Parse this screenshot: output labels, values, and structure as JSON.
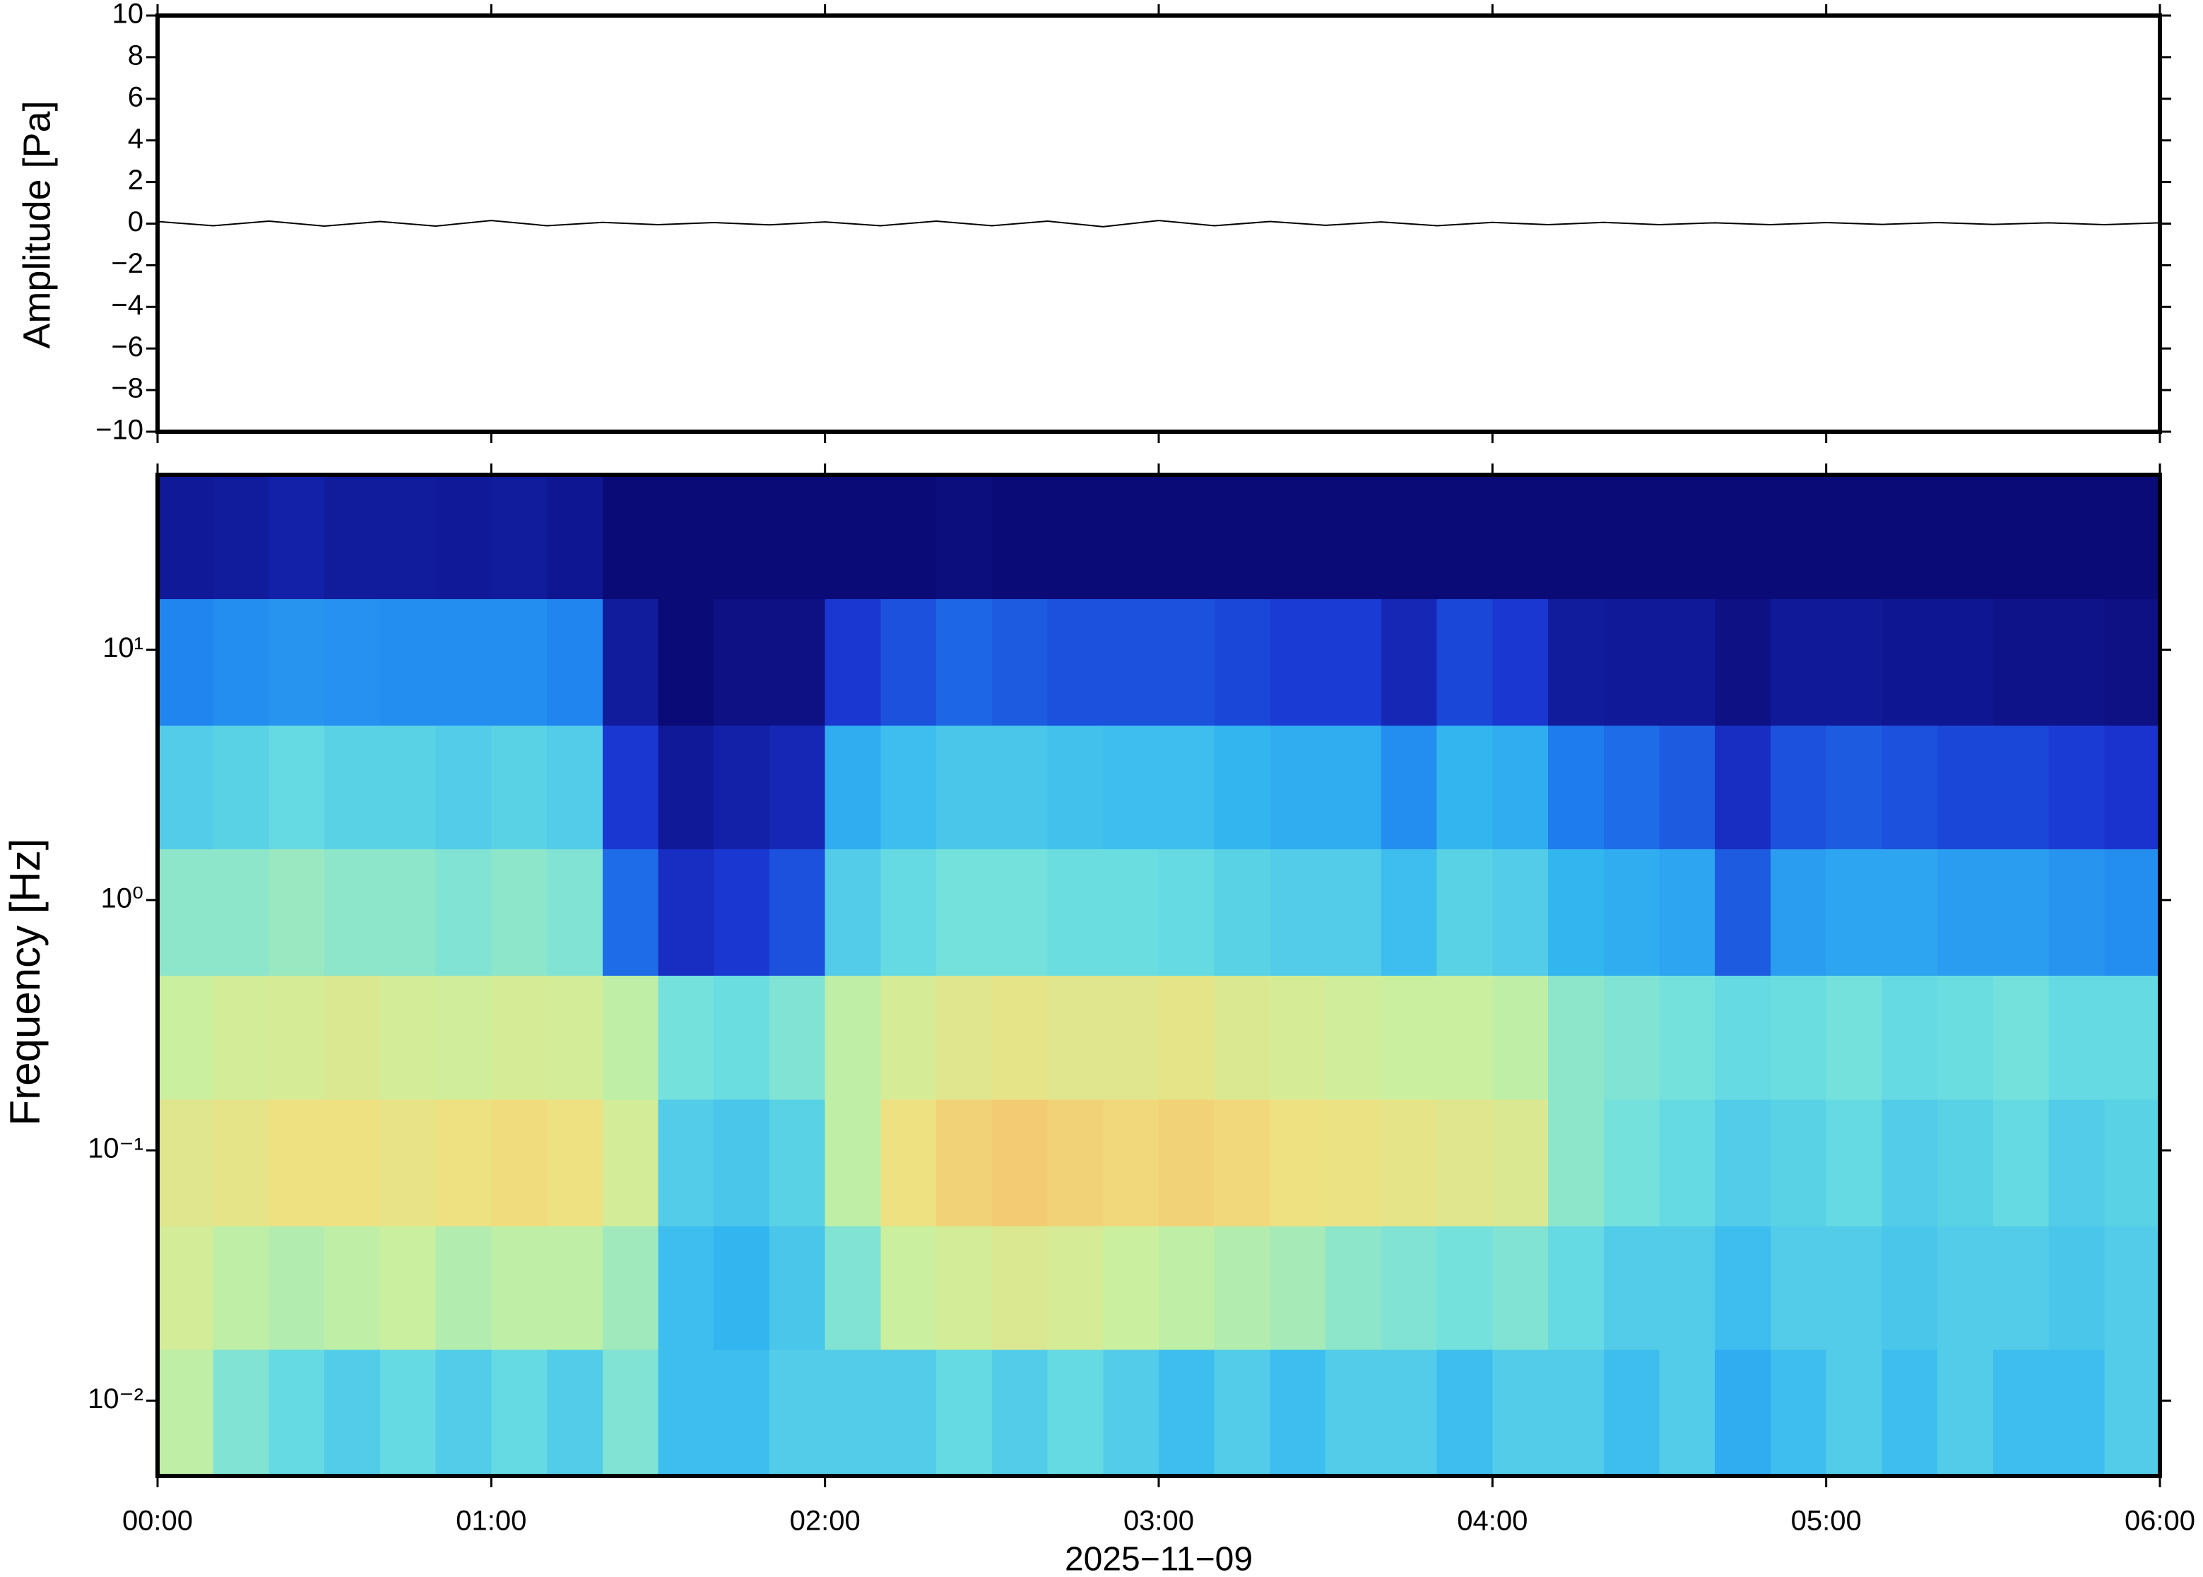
{
  "chart_data": [
    {
      "type": "line",
      "ylabel": "Amplitude [Pa]",
      "xlim": [
        0,
        360
      ],
      "ylim": [
        -10,
        10
      ],
      "yticks": [
        {
          "value": -10,
          "label": "−10"
        },
        {
          "value": -8,
          "label": "−8"
        },
        {
          "value": -6,
          "label": "−6"
        },
        {
          "value": -4,
          "label": "−4"
        },
        {
          "value": -2,
          "label": "−2"
        },
        0,
        2,
        4,
        6,
        8,
        10
      ],
      "x": [
        0,
        10,
        20,
        30,
        40,
        50,
        60,
        70,
        80,
        90,
        100,
        110,
        120,
        130,
        140,
        150,
        160,
        170,
        180,
        190,
        200,
        210,
        220,
        230,
        240,
        250,
        260,
        270,
        280,
        290,
        300,
        310,
        320,
        330,
        340,
        350,
        360
      ],
      "series": [
        {
          "color": "#000000",
          "values": [
            0.1,
            -0.1,
            0.12,
            -0.12,
            0.1,
            -0.12,
            0.15,
            -0.1,
            0.06,
            -0.05,
            0.05,
            -0.06,
            0.08,
            -0.1,
            0.12,
            -0.1,
            0.12,
            -0.15,
            0.15,
            -0.1,
            0.1,
            -0.08,
            0.08,
            -0.1,
            0.06,
            -0.05,
            0.06,
            -0.05,
            0.04,
            -0.05,
            0.05,
            -0.04,
            0.05,
            -0.04,
            0.04,
            -0.05,
            0.04
          ]
        }
      ]
    },
    {
      "type": "heatmap",
      "ylabel": "Frequency [Hz]",
      "xlabel": "2025−11−09",
      "xlim": [
        0,
        360
      ],
      "ylim": [
        0.005,
        50
      ],
      "log_y": true,
      "xticks": [
        {
          "value": 0,
          "label": "00:00"
        },
        {
          "value": 60,
          "label": "01:00"
        },
        {
          "value": 120,
          "label": "02:00"
        },
        {
          "value": 180,
          "label": "03:00"
        },
        {
          "value": 240,
          "label": "04:00"
        },
        {
          "value": 300,
          "label": "05:00"
        },
        {
          "value": 360,
          "label": "06:00"
        }
      ],
      "yticks": [
        {
          "value": 0.01,
          "label": "10⁻²"
        },
        {
          "value": 0.1,
          "label": "10⁻¹"
        },
        {
          "value": 1,
          "label": "10⁰"
        },
        {
          "value": 10,
          "label": "10¹"
        }
      ],
      "x_edges": [
        0,
        10,
        20,
        30,
        40,
        50,
        60,
        70,
        80,
        90,
        100,
        110,
        120,
        130,
        140,
        150,
        160,
        170,
        180,
        190,
        200,
        210,
        220,
        230,
        240,
        250,
        260,
        270,
        280,
        290,
        300,
        310,
        320,
        330,
        340,
        350,
        360
      ],
      "y_edges": [
        0.005,
        0.016,
        0.05,
        0.16,
        0.5,
        1.6,
        5,
        16,
        50
      ],
      "colormap": [
        "#0b0b78",
        "#1a33d0",
        "#1f7ff0",
        "#34b8f0",
        "#6fe0e0",
        "#c8f0a0",
        "#f0e080",
        "#f5b060"
      ],
      "values": [
        [
          0.7,
          0.6,
          0.55,
          0.5,
          0.55,
          0.5,
          0.55,
          0.5,
          0.6,
          0.45,
          0.45,
          0.5,
          0.5,
          0.5,
          0.55,
          0.5,
          0.55,
          0.5,
          0.45,
          0.5,
          0.45,
          0.5,
          0.5,
          0.45,
          0.5,
          0.5,
          0.45,
          0.5,
          0.4,
          0.45,
          0.5,
          0.45,
          0.5,
          0.45,
          0.45,
          0.5
        ],
        [
          0.75,
          0.7,
          0.68,
          0.7,
          0.72,
          0.68,
          0.7,
          0.7,
          0.65,
          0.45,
          0.42,
          0.48,
          0.6,
          0.72,
          0.75,
          0.78,
          0.76,
          0.72,
          0.7,
          0.68,
          0.66,
          0.62,
          0.6,
          0.58,
          0.6,
          0.55,
          0.5,
          0.5,
          0.45,
          0.5,
          0.5,
          0.48,
          0.5,
          0.5,
          0.48,
          0.5
        ],
        [
          0.8,
          0.82,
          0.85,
          0.85,
          0.83,
          0.85,
          0.87,
          0.85,
          0.75,
          0.5,
          0.48,
          0.52,
          0.7,
          0.85,
          0.9,
          0.92,
          0.9,
          0.88,
          0.9,
          0.88,
          0.85,
          0.84,
          0.82,
          0.8,
          0.78,
          0.62,
          0.58,
          0.55,
          0.5,
          0.52,
          0.55,
          0.5,
          0.52,
          0.55,
          0.5,
          0.52
        ],
        [
          0.72,
          0.75,
          0.76,
          0.78,
          0.75,
          0.74,
          0.76,
          0.75,
          0.7,
          0.58,
          0.56,
          0.6,
          0.7,
          0.76,
          0.8,
          0.82,
          0.8,
          0.8,
          0.82,
          0.78,
          0.76,
          0.74,
          0.72,
          0.72,
          0.7,
          0.62,
          0.6,
          0.58,
          0.55,
          0.56,
          0.58,
          0.55,
          0.56,
          0.58,
          0.55,
          0.55
        ],
        [
          0.62,
          0.62,
          0.64,
          0.62,
          0.62,
          0.6,
          0.62,
          0.6,
          0.25,
          0.12,
          0.15,
          0.2,
          0.5,
          0.55,
          0.58,
          0.58,
          0.56,
          0.56,
          0.55,
          0.52,
          0.5,
          0.5,
          0.45,
          0.52,
          0.5,
          0.42,
          0.4,
          0.38,
          0.22,
          0.36,
          0.38,
          0.38,
          0.36,
          0.36,
          0.34,
          0.32
        ],
        [
          0.5,
          0.52,
          0.55,
          0.52,
          0.52,
          0.5,
          0.52,
          0.5,
          0.15,
          0.05,
          0.08,
          0.1,
          0.4,
          0.45,
          0.48,
          0.48,
          0.46,
          0.45,
          0.45,
          0.42,
          0.4,
          0.4,
          0.32,
          0.42,
          0.4,
          0.28,
          0.25,
          0.22,
          0.12,
          0.2,
          0.22,
          0.2,
          0.18,
          0.18,
          0.16,
          0.14
        ],
        [
          0.3,
          0.32,
          0.34,
          0.33,
          0.32,
          0.32,
          0.32,
          0.3,
          0.06,
          0,
          0.02,
          0.02,
          0.15,
          0.2,
          0.24,
          0.22,
          0.2,
          0.2,
          0.2,
          0.18,
          0.16,
          0.16,
          0.1,
          0.18,
          0.15,
          0.06,
          0.05,
          0.05,
          0.02,
          0.05,
          0.05,
          0.04,
          0.04,
          0.03,
          0.03,
          0.02
        ],
        [
          0.05,
          0.06,
          0.08,
          0.06,
          0.06,
          0.05,
          0.06,
          0.04,
          0,
          0,
          0,
          0,
          0,
          0,
          0.01,
          0,
          0,
          0,
          0,
          0,
          0,
          0,
          0,
          0,
          0,
          0,
          0,
          0,
          0,
          0,
          0,
          0,
          0,
          0,
          0,
          0
        ]
      ]
    }
  ]
}
